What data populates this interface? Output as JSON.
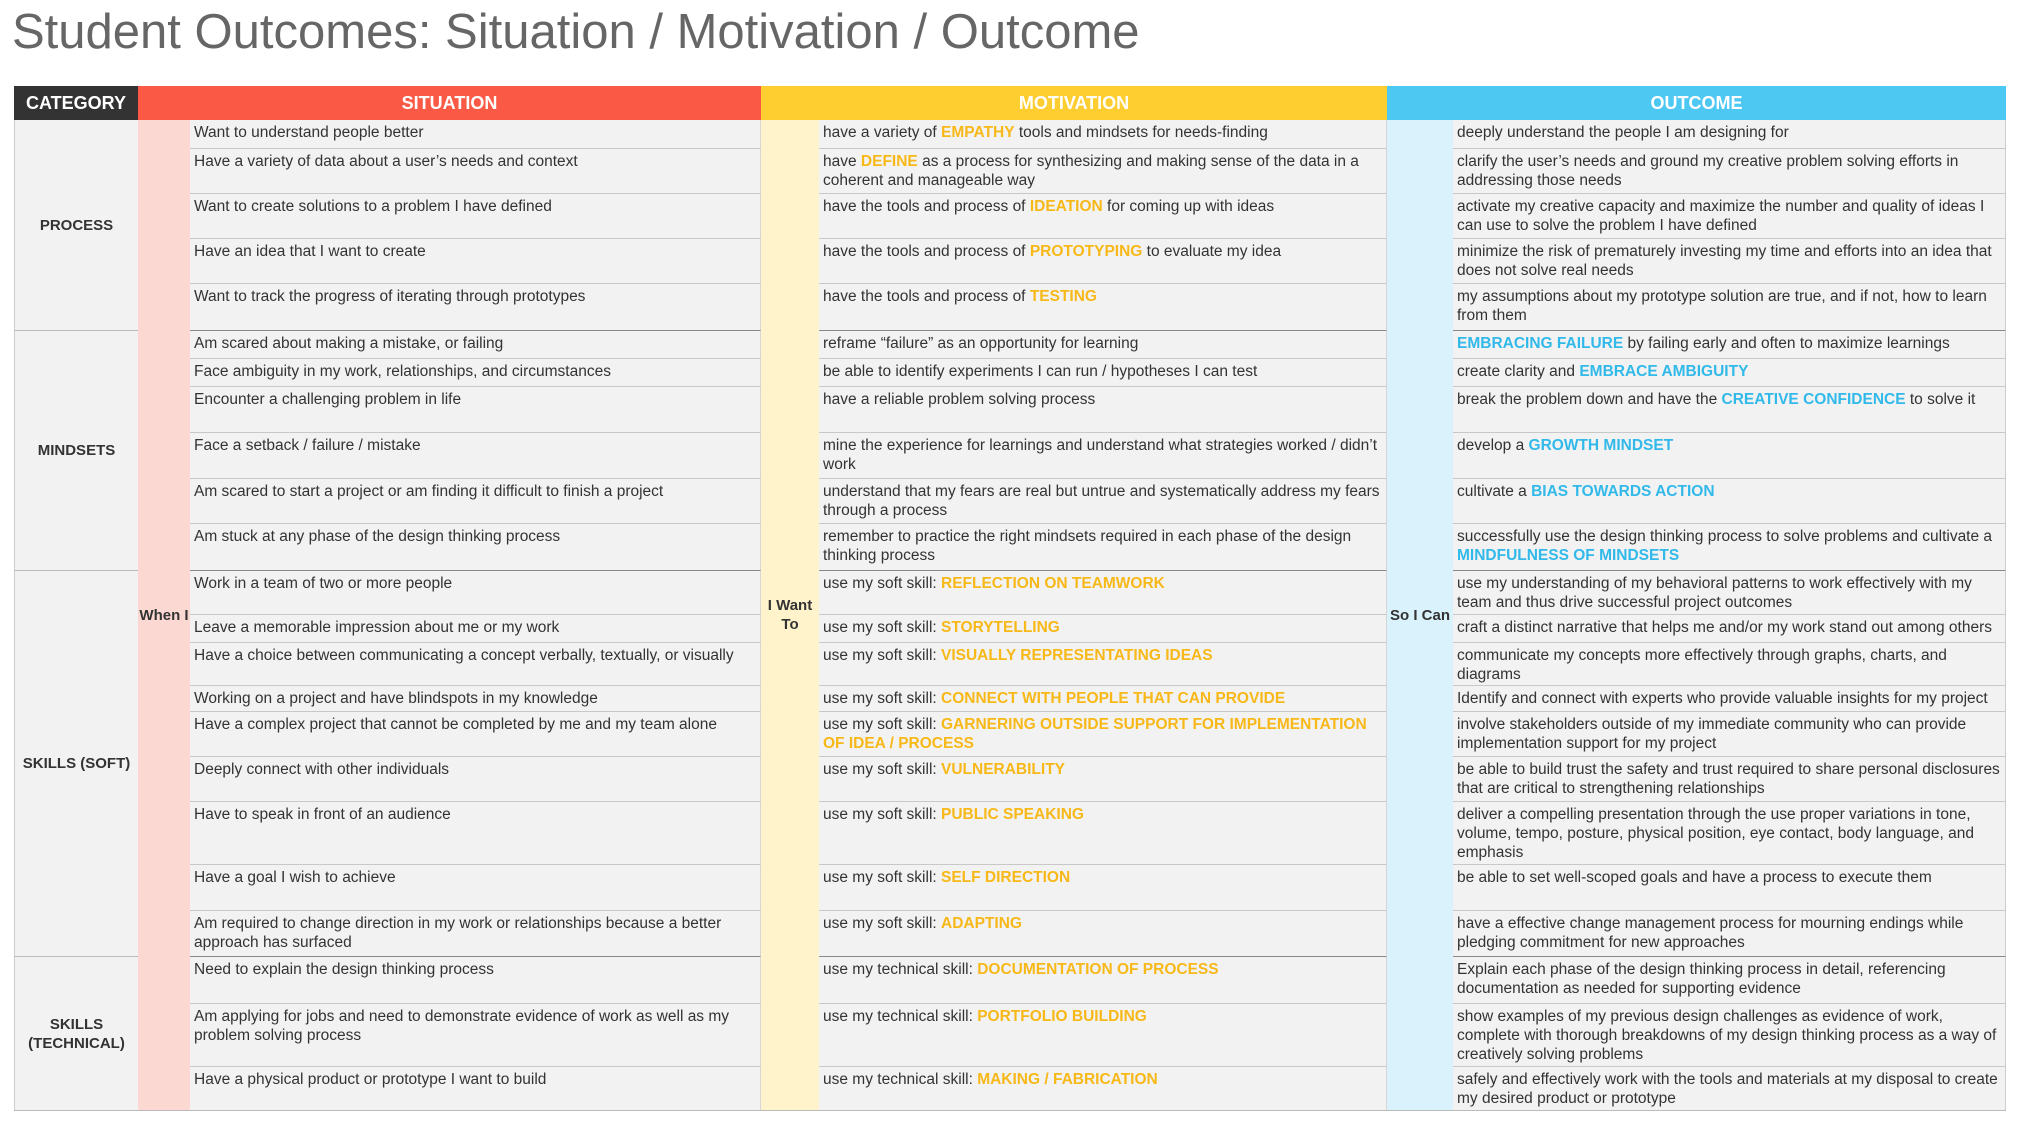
{
  "title": "Student Outcomes: Situation / Motivation / Outcome",
  "colors": {
    "category_header": "#333333",
    "situation": "#fa5a45",
    "motivation": "#fecd30",
    "outcome": "#4dc8f3",
    "motivation_keyword": "#f7b818",
    "outcome_keyword": "#31b9ea"
  },
  "headers": {
    "category": "CATEGORY",
    "situation": "SITUATION",
    "motivation": "MOTIVATION",
    "outcome": "OUTCOME"
  },
  "strips": {
    "situation": "When I",
    "motivation": "I Want To",
    "outcome": "So I Can"
  },
  "categories": [
    {
      "label": "PROCESS",
      "rows": 5
    },
    {
      "label": "MINDSETS",
      "rows": 6
    },
    {
      "label": "SKILLS (SOFT)",
      "rows": 9
    },
    {
      "label": "SKILLS (TECHNICAL)",
      "rows": 3
    }
  ],
  "rows": [
    {
      "situation": "Want to understand people better",
      "motivation": {
        "pre": "have a variety of ",
        "kw": "EMPATHY",
        "post": " tools and mindsets for needs-finding"
      },
      "outcome": {
        "pre": "deeply understand the people I am designing for",
        "kw": "",
        "post": ""
      }
    },
    {
      "situation": "Have a variety of data about a user’s needs and context",
      "motivation": {
        "pre": "have ",
        "kw": "DEFINE",
        "post": " as a process for synthesizing and making sense of the data in a coherent and manageable way"
      },
      "outcome": {
        "pre": "clarify the user’s needs and ground my creative problem solving efforts in addressing those needs",
        "kw": "",
        "post": ""
      }
    },
    {
      "situation": "Want to create solutions to a problem I have defined",
      "motivation": {
        "pre": "have the tools and process of ",
        "kw": "IDEATION",
        "post": " for coming up with ideas"
      },
      "outcome": {
        "pre": "activate my creative capacity and maximize the number and quality of ideas I can use to solve the problem I have defined",
        "kw": "",
        "post": ""
      }
    },
    {
      "situation": "Have an idea that I want to create",
      "motivation": {
        "pre": "have the tools and process of ",
        "kw": "PROTOTYPING",
        "post": " to evaluate my idea"
      },
      "outcome": {
        "pre": "minimize the risk of prematurely investing my time and efforts into an idea that does not solve real needs",
        "kw": "",
        "post": ""
      }
    },
    {
      "situation": "Want to track the progress of iterating through prototypes",
      "motivation": {
        "pre": "have the tools and process of ",
        "kw": "TESTING",
        "post": ""
      },
      "outcome": {
        "pre": "my assumptions about my prototype solution are true, and if not, how to learn from them",
        "kw": "",
        "post": ""
      }
    },
    {
      "situation": "Am scared about making a mistake, or failing",
      "motivation": {
        "pre": "reframe “failure” as an opportunity for learning",
        "kw": "",
        "post": ""
      },
      "outcome": {
        "pre": "",
        "kw": "EMBRACING FAILURE",
        "post": " by failing early and often to maximize learnings"
      }
    },
    {
      "situation": "Face ambiguity in my work, relationships, and circumstances",
      "motivation": {
        "pre": "be able to identify experiments I can run / hypotheses I can test",
        "kw": "",
        "post": ""
      },
      "outcome": {
        "pre": "create clarity and ",
        "kw": "EMBRACE AMBIGUITY",
        "post": ""
      }
    },
    {
      "situation": "Encounter a challenging problem in life",
      "motivation": {
        "pre": "have a reliable problem solving process",
        "kw": "",
        "post": ""
      },
      "outcome": {
        "pre": "break the problem down and have the ",
        "kw": "CREATIVE CONFIDENCE",
        "post": " to solve it"
      }
    },
    {
      "situation": "Face a setback / failure / mistake",
      "motivation": {
        "pre": "mine the experience for learnings and understand what strategies worked / didn’t work",
        "kw": "",
        "post": ""
      },
      "outcome": {
        "pre": "develop a ",
        "kw": "GROWTH MINDSET",
        "post": ""
      }
    },
    {
      "situation": "Am scared to start a project or am finding it difficult to finish a project",
      "motivation": {
        "pre": "understand that my fears are real but untrue and systematically address my fears through a process",
        "kw": "",
        "post": ""
      },
      "outcome": {
        "pre": "cultivate a ",
        "kw": "BIAS TOWARDS ACTION",
        "post": ""
      }
    },
    {
      "situation": "Am stuck at any phase of the design thinking process",
      "motivation": {
        "pre": "remember to practice the right mindsets required in each phase of the design thinking process",
        "kw": "",
        "post": ""
      },
      "outcome": {
        "pre": "successfully use the design thinking process to solve problems and cultivate a ",
        "kw": "MINDFULNESS OF MINDSETS",
        "post": ""
      }
    },
    {
      "situation": "Work in a team of two or more people",
      "motivation": {
        "pre": "use my soft skill: ",
        "kw": "REFLECTION ON TEAMWORK",
        "post": ""
      },
      "outcome": {
        "pre": "use my understanding of my behavioral patterns to work effectively with my team and thus drive successful project outcomes",
        "kw": "",
        "post": ""
      }
    },
    {
      "situation": "Leave a memorable impression about me or my work",
      "motivation": {
        "pre": "use my soft skill: ",
        "kw": "STORYTELLING",
        "post": ""
      },
      "outcome": {
        "pre": "craft a distinct narrative that helps me and/or my work stand out among others",
        "kw": "",
        "post": ""
      }
    },
    {
      "situation": "Have a choice between communicating a concept verbally, textually, or visually",
      "motivation": {
        "pre": "use my soft skill: ",
        "kw": "VISUALLY REPRESENTATING IDEAS",
        "post": ""
      },
      "outcome": {
        "pre": "communicate my concepts more effectively through graphs, charts, and diagrams",
        "kw": "",
        "post": ""
      }
    },
    {
      "situation": "Working on a project and have blindspots in my knowledge",
      "motivation": {
        "pre": "use my soft skill: ",
        "kw": "CONNECT WITH PEOPLE THAT CAN PROVIDE RESOURCES",
        "post": ""
      },
      "outcome": {
        "pre": "Identify and connect with experts who provide valuable insights for my project",
        "kw": "",
        "post": ""
      }
    },
    {
      "situation": "Have a complex project that cannot be completed by me and my team alone",
      "motivation": {
        "pre": "use my soft skill: ",
        "kw": "GARNERING OUTSIDE SUPPORT FOR IMPLEMENTATION OF IDEA / PROCESS",
        "post": ""
      },
      "outcome": {
        "pre": "involve stakeholders outside of my immediate community who can provide implementation support for my project",
        "kw": "",
        "post": ""
      }
    },
    {
      "situation": "Deeply connect with other individuals",
      "motivation": {
        "pre": "use my soft skill: ",
        "kw": "VULNERABILITY",
        "post": ""
      },
      "outcome": {
        "pre": "be able to build trust the safety and trust required to share personal disclosures that are critical to strengthening relationships",
        "kw": "",
        "post": ""
      }
    },
    {
      "situation": "Have to speak in front of an audience",
      "motivation": {
        "pre": "use my soft skill: ",
        "kw": "PUBLIC SPEAKING",
        "post": ""
      },
      "outcome": {
        "pre": "deliver a compelling presentation through the use proper variations in tone, volume, tempo, posture, physical position, eye contact, body language, and emphasis",
        "kw": "",
        "post": ""
      }
    },
    {
      "situation": "Have a goal I wish to achieve",
      "motivation": {
        "pre": "use my soft skill: ",
        "kw": "SELF DIRECTION",
        "post": ""
      },
      "outcome": {
        "pre": "be able to set well-scoped goals and have a process to execute them",
        "kw": "",
        "post": ""
      }
    },
    {
      "situation": "Am required to change direction in my work or relationships because a better approach has surfaced",
      "motivation": {
        "pre": "use my soft skill: ",
        "kw": "ADAPTING",
        "post": ""
      },
      "outcome": {
        "pre": "have a effective change management process for mourning endings while pledging commitment for new approaches",
        "kw": "",
        "post": ""
      }
    },
    {
      "situation": "Need to explain the design thinking process",
      "motivation": {
        "pre": "use my technical skill: ",
        "kw": "DOCUMENTATION OF PROCESS",
        "post": ""
      },
      "outcome": {
        "pre": "Explain each phase of the design thinking process in detail, referencing documentation as needed for supporting evidence",
        "kw": "",
        "post": ""
      }
    },
    {
      "situation": "Am applying for jobs and need to demonstrate evidence of work as well as my problem solving process",
      "motivation": {
        "pre": "use my technical skill: ",
        "kw": "PORTFOLIO BUILDING",
        "post": ""
      },
      "outcome": {
        "pre": "show examples of my previous design challenges as evidence of work, complete with thorough breakdowns of my design thinking process as a way of creatively solving problems",
        "kw": "",
        "post": ""
      }
    },
    {
      "situation": "Have a physical product or prototype I want to build",
      "motivation": {
        "pre": "use my technical skill: ",
        "kw": "MAKING / FABRICATION",
        "post": ""
      },
      "outcome": {
        "pre": "safely and effectively work with the tools and materials at my disposal to create my desired product or prototype",
        "kw": "",
        "post": ""
      }
    }
  ]
}
